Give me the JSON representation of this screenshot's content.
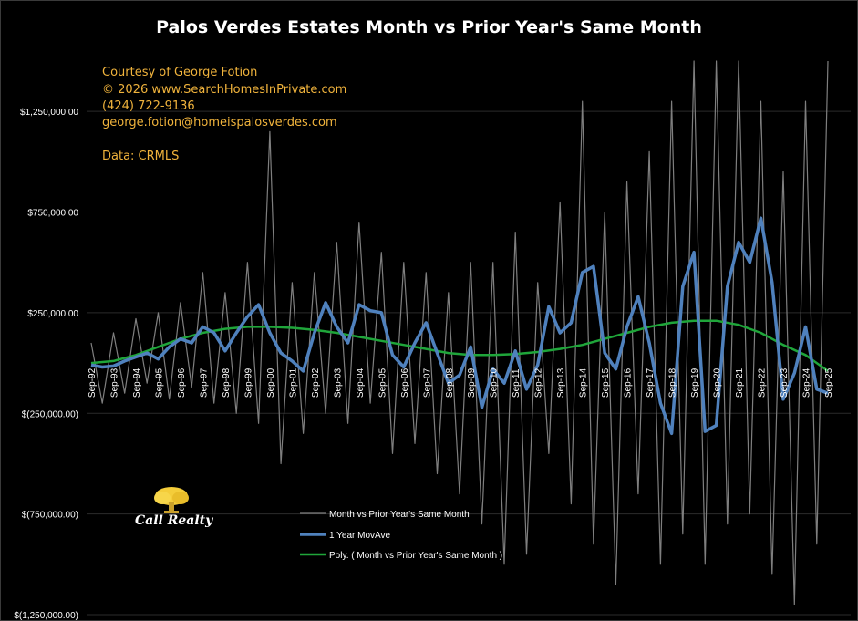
{
  "title": "Palos Verdes Estates Month vs Prior Year's Same Month",
  "courtesy": {
    "line1": "Courtesy of George Fotion",
    "line2": "© 2026 www.SearchHomesInPrivate.com",
    "line3": "(424) 722-9136",
    "line4": "george.fotion@homeispalosverdes.com",
    "line5": "Data: CRMLS"
  },
  "logo": {
    "text": "Call Realty",
    "icon": "tree-icon"
  },
  "colors": {
    "background": "#000000",
    "series_monthly": "#7f7f7f",
    "series_movave": "#4f81bd",
    "series_poly": "#1fa53a",
    "courtesy": "#f0b33c"
  },
  "chart_data": {
    "type": "line",
    "title": "Palos Verdes Estates Month vs Prior Year's Same Month",
    "xlabel": "",
    "ylabel": "",
    "ylim": [
      -1250000,
      1500000
    ],
    "y_ticks": [
      1250000,
      750000,
      250000,
      -250000,
      -750000,
      -1250000
    ],
    "y_tick_labels": [
      "$1,250,000.00",
      "$750,000.00",
      "$250,000.00",
      "$(250,000.00)",
      "$(750,000.00)",
      "$(1,250,000.00)"
    ],
    "x_tick_labels": [
      "Sep-92",
      "Sep-93",
      "Sep-94",
      "Sep-95",
      "Sep-96",
      "Sep-97",
      "Sep-98",
      "Sep-99",
      "Sep-00",
      "Sep-01",
      "Sep-02",
      "Sep-03",
      "Sep-04",
      "Sep-05",
      "Sep-06",
      "Sep-07",
      "Sep-08",
      "Sep-09",
      "Sep-10",
      "Sep-11",
      "Sep-12",
      "Sep-13",
      "Sep-14",
      "Sep-15",
      "Sep-16",
      "Sep-17",
      "Sep-18",
      "Sep-19",
      "Sep-20",
      "Sep-21",
      "Sep-22",
      "Sep-23",
      "Sep-24",
      "Sep-25"
    ],
    "grid": true,
    "legend": "bottom-center",
    "series": [
      {
        "name": "1 Year MovAve",
        "x": [
          1992.7,
          1993.2,
          1993.7,
          1994.2,
          1994.7,
          1995.2,
          1995.7,
          1996.2,
          1996.7,
          1997.2,
          1997.7,
          1998.2,
          1998.7,
          1999.2,
          1999.7,
          2000.2,
          2000.7,
          2001.2,
          2001.7,
          2002.2,
          2002.7,
          2003.2,
          2003.7,
          2004.2,
          2004.7,
          2005.2,
          2005.7,
          2006.2,
          2006.7,
          2007.2,
          2007.7,
          2008.2,
          2008.7,
          2009.2,
          2009.7,
          2010.2,
          2010.7,
          2011.2,
          2011.7,
          2012.2,
          2012.7,
          2013.2,
          2013.7,
          2014.2,
          2014.7,
          2015.2,
          2015.7,
          2016.2,
          2016.7,
          2017.2,
          2017.7,
          2018.2,
          2018.7,
          2019.2,
          2019.7,
          2020.2,
          2020.7,
          2021.2,
          2021.7,
          2022.2,
          2022.7,
          2023.2,
          2023.7,
          2024.2,
          2024.7,
          2025.2,
          2025.7
        ],
        "y": [
          -10000,
          -20000,
          -15000,
          10000,
          30000,
          50000,
          20000,
          80000,
          120000,
          100000,
          180000,
          150000,
          60000,
          150000,
          230000,
          290000,
          150000,
          50000,
          10000,
          -40000,
          150000,
          300000,
          180000,
          100000,
          290000,
          260000,
          250000,
          40000,
          -20000,
          100000,
          200000,
          50000,
          -100000,
          -60000,
          80000,
          -220000,
          -30000,
          -100000,
          60000,
          -130000,
          -10000,
          280000,
          150000,
          200000,
          450000,
          480000,
          50000,
          -30000,
          180000,
          330000,
          100000,
          -200000,
          -350000,
          380000,
          550000,
          -340000,
          -310000,
          380000,
          600000,
          500000,
          720000,
          400000,
          -180000,
          -50000,
          180000,
          -130000,
          -150000
        ]
      },
      {
        "name": "Poly. ( Month vs Prior Year's Same Month )",
        "x": [
          1992.7,
          1993.7,
          1994.7,
          1995.7,
          1996.7,
          1997.7,
          1998.7,
          1999.7,
          2000.7,
          2001.7,
          2002.7,
          2003.7,
          2004.7,
          2005.7,
          2006.7,
          2007.7,
          2008.7,
          2009.7,
          2010.7,
          2011.7,
          2012.7,
          2013.7,
          2014.7,
          2015.7,
          2016.7,
          2017.7,
          2018.7,
          2019.7,
          2020.7,
          2021.7,
          2022.7,
          2023.7,
          2024.7,
          2025.7
        ],
        "y": [
          0,
          10000,
          40000,
          80000,
          120000,
          150000,
          170000,
          180000,
          180000,
          175000,
          165000,
          150000,
          130000,
          110000,
          90000,
          70000,
          50000,
          40000,
          40000,
          45000,
          55000,
          70000,
          90000,
          120000,
          150000,
          180000,
          200000,
          210000,
          210000,
          190000,
          150000,
          90000,
          40000,
          -40000
        ]
      },
      {
        "name": "Month vs Prior Year's Same Month",
        "x": [
          1992.7,
          1993.2,
          1993.7,
          1994.2,
          1994.7,
          1995.2,
          1995.7,
          1996.2,
          1996.7,
          1997.2,
          1997.7,
          1998.2,
          1998.7,
          1999.2,
          1999.7,
          2000.2,
          2000.7,
          2001.2,
          2001.7,
          2002.2,
          2002.7,
          2003.2,
          2003.7,
          2004.2,
          2004.7,
          2005.2,
          2005.7,
          2006.2,
          2006.7,
          2007.2,
          2007.7,
          2008.2,
          2008.7,
          2009.2,
          2009.7,
          2010.2,
          2010.7,
          2011.2,
          2011.7,
          2012.2,
          2012.7,
          2013.2,
          2013.7,
          2014.2,
          2014.7,
          2015.2,
          2015.7,
          2016.2,
          2016.7,
          2017.2,
          2017.7,
          2018.2,
          2018.7,
          2019.2,
          2019.7,
          2020.2,
          2020.7,
          2021.2,
          2021.7,
          2022.2,
          2022.7,
          2023.2,
          2023.7,
          2024.2,
          2024.7,
          2025.2,
          2025.7
        ],
        "y": [
          100000,
          -200000,
          150000,
          -150000,
          220000,
          -100000,
          250000,
          -180000,
          300000,
          -120000,
          450000,
          -200000,
          350000,
          -250000,
          500000,
          -300000,
          1150000,
          -500000,
          400000,
          -350000,
          450000,
          -250000,
          600000,
          -300000,
          700000,
          -200000,
          550000,
          -450000,
          500000,
          -400000,
          450000,
          -550000,
          350000,
          -650000,
          500000,
          -800000,
          500000,
          -1000000,
          650000,
          -950000,
          400000,
          -450000,
          800000,
          -700000,
          1300000,
          -900000,
          750000,
          -1100000,
          900000,
          -650000,
          1050000,
          -1000000,
          1300000,
          -850000,
          1500000,
          -1000000,
          1500000,
          -800000,
          1500000,
          -750000,
          1300000,
          -1050000,
          950000,
          -1200000,
          1300000,
          -900000,
          1500000
        ]
      }
    ]
  }
}
